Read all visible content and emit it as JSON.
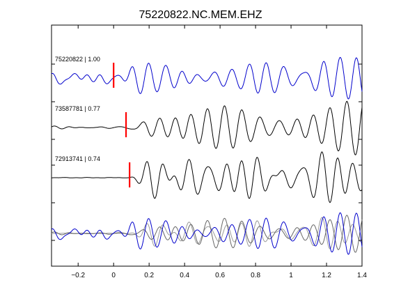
{
  "chart_data": {
    "type": "line",
    "title": "75220822.NC.MEM.EHZ",
    "xlabel": "",
    "ylabel": "",
    "xlim": [
      -0.35,
      1.4
    ],
    "x_ticks": [
      -0.2,
      0,
      0.2,
      0.4,
      0.6,
      0.8,
      1,
      1.2,
      1.4
    ],
    "x_tick_labels": [
      "−0.2",
      "0",
      "0.2",
      "0.4",
      "0.6",
      "0.8",
      "1",
      "1.2",
      "1.4"
    ],
    "grid": false,
    "traces": [
      {
        "label": "75220822 | 1.00",
        "color": "#0000cc",
        "pick_time": 0.0,
        "pick_color": "#ff0000",
        "pre_pick_amplitude": 0.15,
        "amplitude": 0.45,
        "dominant_frequency_hz": 9,
        "seed": 1
      },
      {
        "label": "73587781 | 0.77",
        "color": "#000000",
        "pick_time": 0.07,
        "pick_color": "#ff0000",
        "pre_pick_amplitude": 0.04,
        "amplitude": 0.55,
        "dominant_frequency_hz": 9,
        "seed": 2
      },
      {
        "label": "72913741 | 0.74",
        "color": "#000000",
        "pick_time": 0.09,
        "pick_color": "#ff0000",
        "pre_pick_amplitude": 0.01,
        "amplitude": 0.55,
        "dominant_frequency_hz": 9,
        "seed": 3
      }
    ],
    "stack": {
      "series": [
        {
          "color": "#0000cc",
          "amplitude": 0.45,
          "seed": 1
        },
        {
          "color": "#666666",
          "amplitude": 0.38,
          "seed": 2
        },
        {
          "color": "#999999",
          "amplitude": 0.34,
          "seed": 3
        }
      ]
    }
  }
}
